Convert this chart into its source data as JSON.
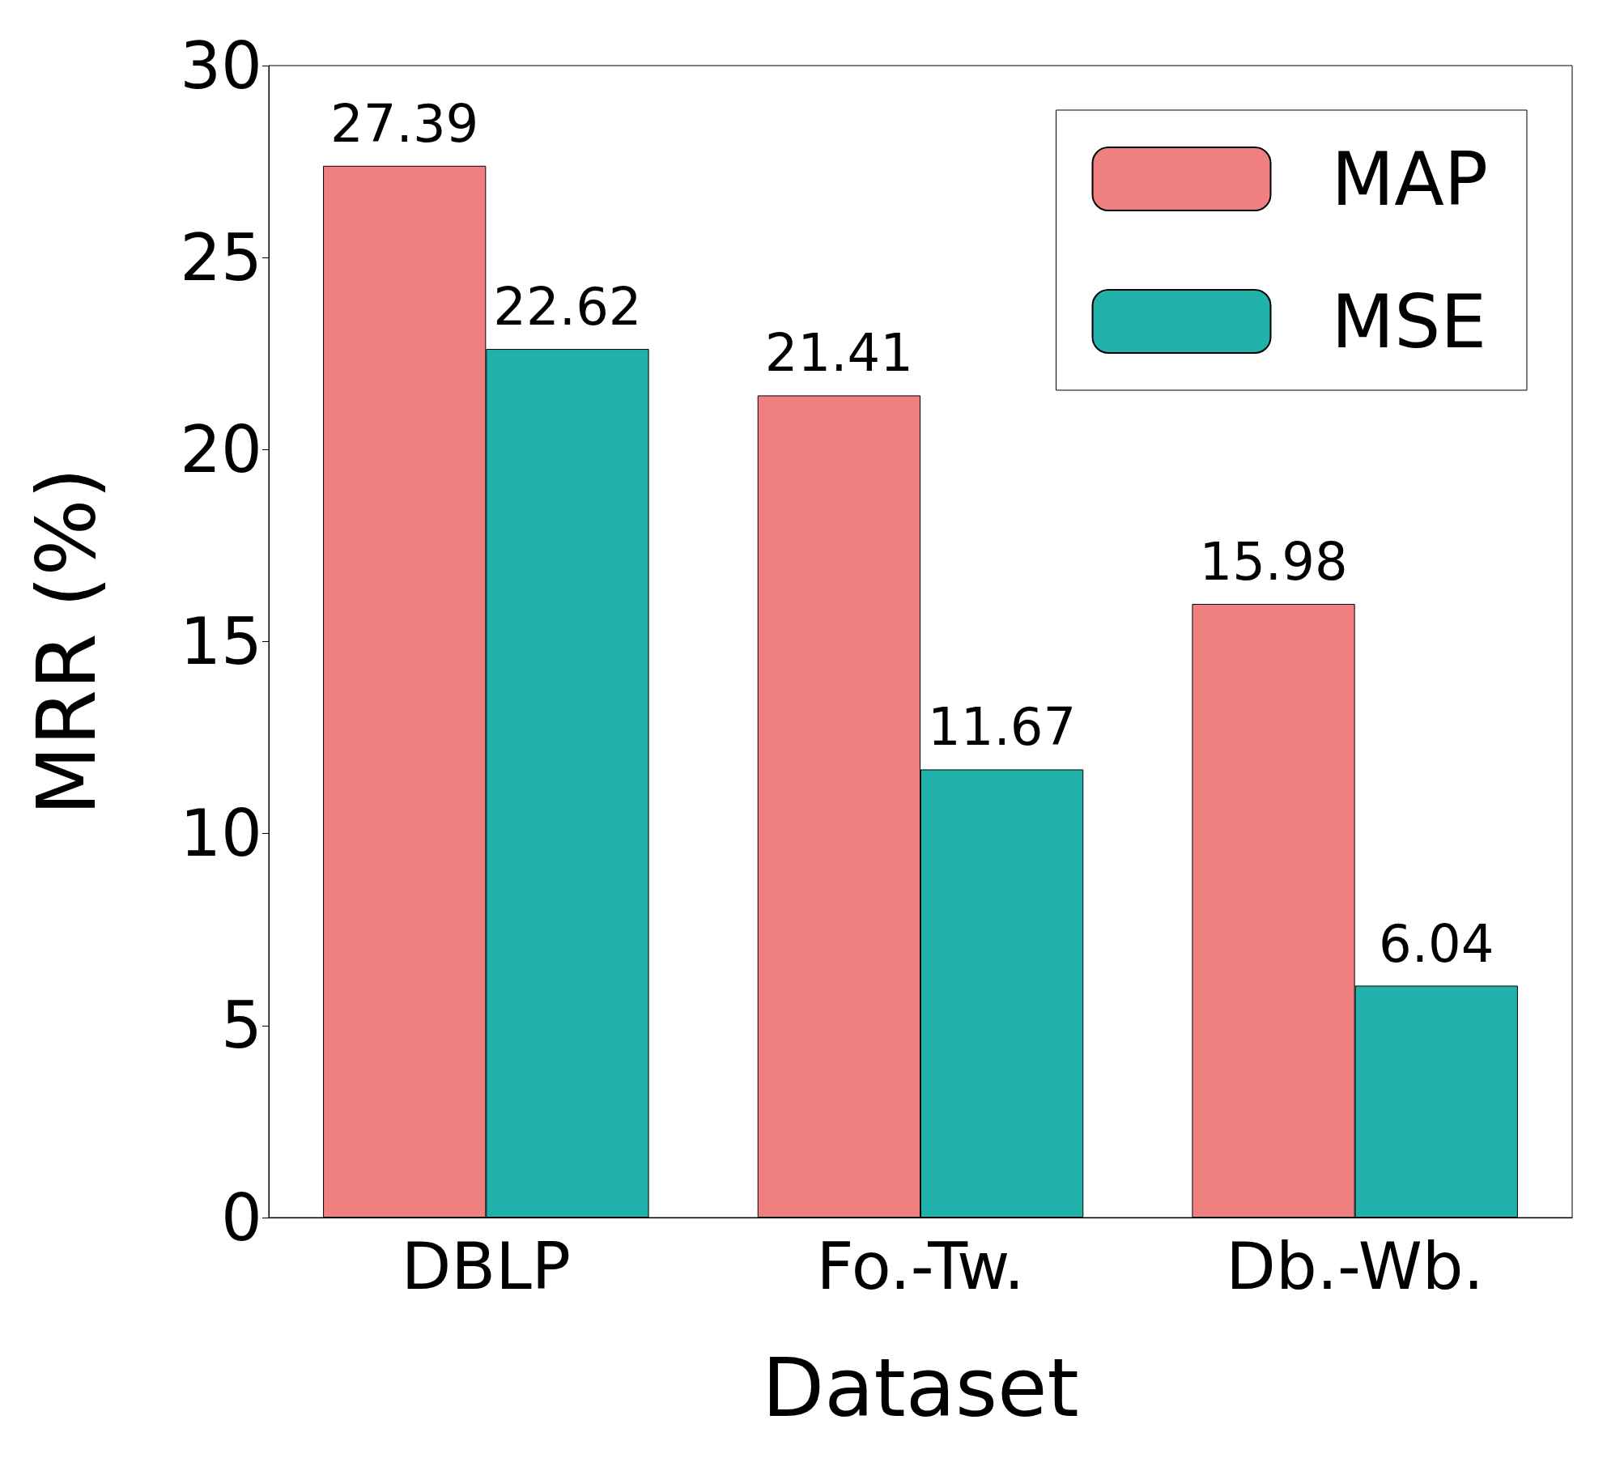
{
  "chart_data": {
    "type": "bar",
    "xlabel": "Dataset",
    "ylabel": "MRR (%)",
    "categories": [
      "DBLP",
      "Fo.-Tw.",
      "Db.-Wb."
    ],
    "series": [
      {
        "name": "MAP",
        "color": "#f08080",
        "values": [
          27.39,
          21.41,
          15.98
        ]
      },
      {
        "name": "MSE",
        "color": "#20b2aa",
        "values": [
          22.62,
          11.67,
          6.04
        ]
      }
    ],
    "ylim": [
      0,
      30
    ],
    "yticks": [
      0,
      5,
      10,
      15,
      20,
      25,
      30
    ],
    "data_labels": true,
    "legend": "top right",
    "grid": false
  }
}
